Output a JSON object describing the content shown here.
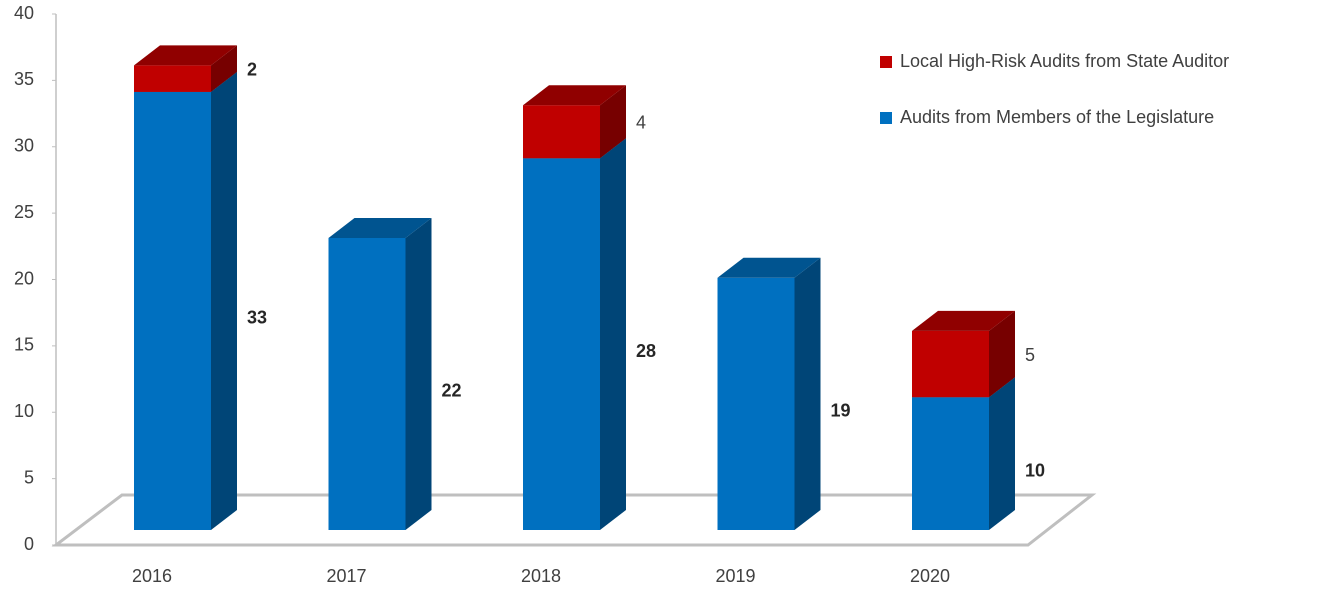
{
  "chart_data": {
    "type": "bar3d_stacked",
    "categories": [
      "2016",
      "2017",
      "2018",
      "2019",
      "2020"
    ],
    "series": [
      {
        "name": "Audits from Members of the Legislature",
        "color": "#0070c0",
        "values": [
          33,
          22,
          28,
          19,
          10
        ]
      },
      {
        "name": "Local High-Risk Audits from State Auditor",
        "color": "#c00000",
        "values": [
          2,
          null,
          4,
          null,
          5
        ]
      }
    ],
    "ylim": [
      0,
      40
    ],
    "yticks": [
      0,
      5,
      10,
      15,
      20,
      25,
      30,
      35,
      40
    ],
    "legend": "top-right"
  }
}
